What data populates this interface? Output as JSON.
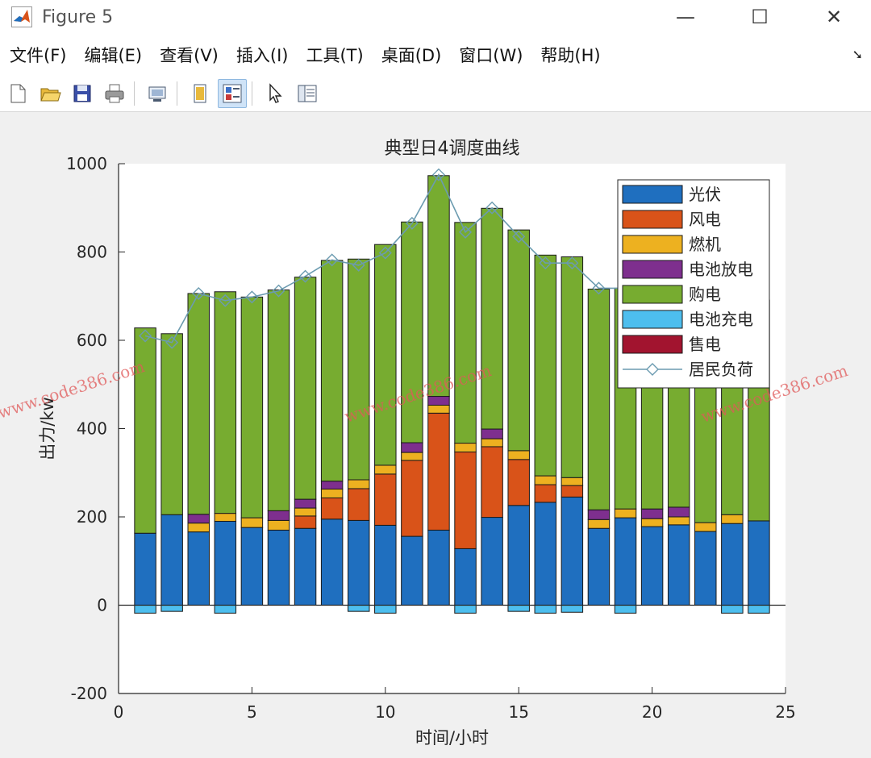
{
  "window": {
    "title": "Figure 5",
    "minimize_glyph": "—",
    "maximize_glyph": "☐",
    "close_glyph": "✕"
  },
  "menu": [
    "文件(F)",
    "编辑(E)",
    "查看(V)",
    "插入(I)",
    "工具(T)",
    "桌面(D)",
    "窗口(W)",
    "帮助(H)"
  ],
  "toolbar": {
    "icons": [
      "new-figure-icon",
      "open-file-icon",
      "save-icon",
      "print-icon",
      "link-plot-icon",
      "hide-plot-tools-icon",
      "show-plot-tools-icon",
      "edit-plot-arrow-icon",
      "property-inspector-icon"
    ]
  },
  "chart_data": {
    "type": "bar",
    "stacked": true,
    "title": "典型日4调度曲线",
    "xlabel": "时间/小时",
    "ylabel": "出力/kw",
    "xlim": [
      0,
      25
    ],
    "ylim": [
      -200,
      1000
    ],
    "xticks": [
      0,
      5,
      10,
      15,
      20,
      25
    ],
    "yticks": [
      -200,
      0,
      200,
      400,
      600,
      800,
      1000
    ],
    "legend_position": "top-right",
    "x": [
      1,
      2,
      3,
      4,
      5,
      6,
      7,
      8,
      9,
      10,
      11,
      12,
      13,
      14,
      15,
      16,
      17,
      18,
      19,
      20,
      21,
      22,
      23,
      24
    ],
    "series": [
      {
        "name": "光伏",
        "color": "#1f6fbf",
        "values": [
          163,
          205,
          166,
          190,
          176,
          170,
          174,
          195,
          192,
          181,
          156,
          170,
          128,
          199,
          226,
          233,
          245,
          174,
          198,
          178,
          182,
          167,
          185,
          191
        ]
      },
      {
        "name": "风电",
        "color": "#d95319",
        "values": [
          0,
          0,
          0,
          0,
          0,
          0,
          28,
          48,
          72,
          116,
          172,
          265,
          219,
          160,
          104,
          40,
          26,
          0,
          0,
          0,
          0,
          0,
          0,
          0
        ]
      },
      {
        "name": "燃机",
        "color": "#edb120",
        "values": [
          0,
          0,
          20,
          18,
          22,
          22,
          18,
          20,
          20,
          20,
          18,
          18,
          20,
          18,
          20,
          20,
          18,
          20,
          20,
          18,
          18,
          20,
          20,
          0
        ]
      },
      {
        "name": "电池放电",
        "color": "#7e2f8e",
        "values": [
          0,
          0,
          20,
          0,
          0,
          22,
          20,
          18,
          0,
          0,
          22,
          20,
          0,
          22,
          0,
          0,
          0,
          22,
          0,
          22,
          22,
          0,
          0,
          0
        ]
      },
      {
        "name": "购电",
        "color": "#77ac30",
        "values": [
          465,
          410,
          500,
          502,
          500,
          500,
          503,
          500,
          500,
          500,
          500,
          500,
          500,
          500,
          500,
          500,
          500,
          500,
          500,
          500,
          500,
          500,
          500,
          500
        ]
      },
      {
        "name": "电池充电",
        "color": "#4dbeee",
        "values": [
          -18,
          -14,
          0,
          -18,
          0,
          0,
          0,
          0,
          -14,
          -18,
          0,
          0,
          -18,
          0,
          -14,
          -18,
          -16,
          0,
          -18,
          0,
          0,
          0,
          -18,
          -18
        ]
      },
      {
        "name": "售电",
        "color": "#a2142f",
        "values": [
          0,
          0,
          0,
          0,
          0,
          0,
          0,
          0,
          0,
          0,
          0,
          0,
          0,
          0,
          0,
          0,
          0,
          0,
          0,
          0,
          0,
          0,
          0,
          0
        ]
      }
    ],
    "line_series": {
      "name": "居民负荷",
      "color": "#6b9bb0",
      "marker": "diamond",
      "values": [
        610,
        595,
        706,
        690,
        698,
        712,
        745,
        782,
        770,
        798,
        865,
        975,
        845,
        900,
        835,
        775,
        775,
        718,
        718,
        710,
        720,
        720,
        730,
        720
      ]
    },
    "watermark": "www.code386.com"
  }
}
